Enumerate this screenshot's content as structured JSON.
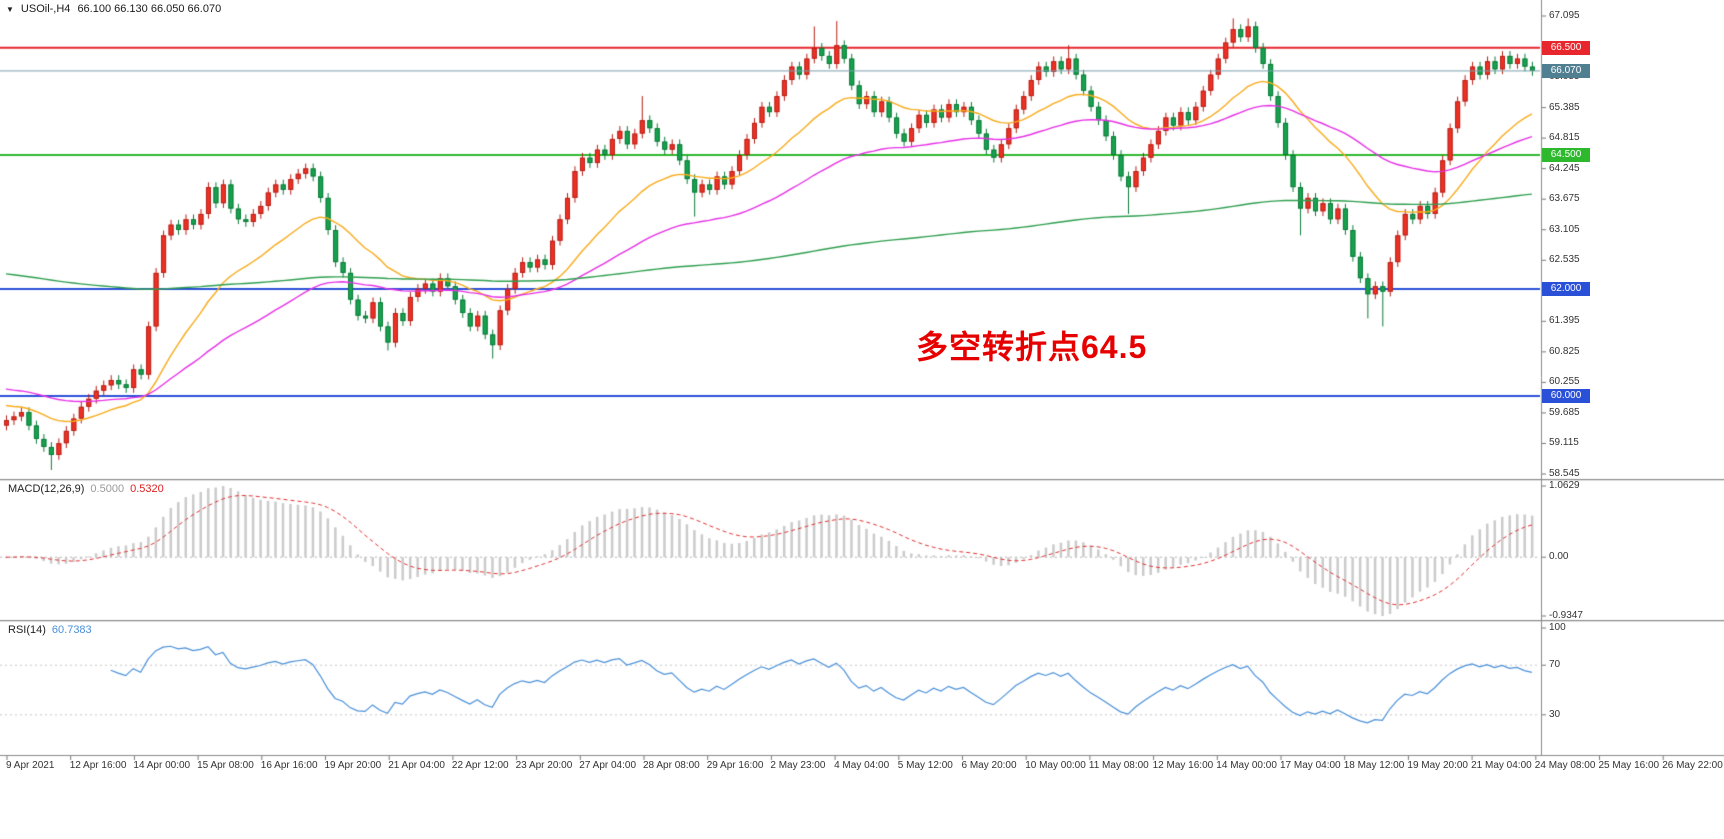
{
  "chart_data": [
    {
      "type": "candlestick",
      "title": "USOil-,H4",
      "ohlc_text": "66.100 66.130 66.050 66.070",
      "collapse_icon": "▼",
      "annotation": {
        "text": "多空转折点64.5",
        "color": "#e60000"
      },
      "y_ticks": [
        "67.095",
        "66.525",
        "65.955",
        "65.385",
        "64.815",
        "64.245",
        "63.675",
        "63.105",
        "62.535",
        "61.965",
        "61.395",
        "60.825",
        "60.255",
        "59.685",
        "59.115",
        "58.545"
      ],
      "scale": {
        "top_value": 67.095,
        "bottom_value": 58.545
      },
      "first_open": 59.45,
      "default_wick": 0.09,
      "closes": [
        59.55,
        59.62,
        59.7,
        59.45,
        59.2,
        59.05,
        58.9,
        59.12,
        59.35,
        59.58,
        59.8,
        59.95,
        60.1,
        60.2,
        60.3,
        60.22,
        60.15,
        60.5,
        60.4,
        61.3,
        62.3,
        63.0,
        63.2,
        63.1,
        63.3,
        63.2,
        63.4,
        63.9,
        63.6,
        63.95,
        63.5,
        63.3,
        63.25,
        63.4,
        63.55,
        63.8,
        63.95,
        63.85,
        64.05,
        64.15,
        64.25,
        64.1,
        63.7,
        63.1,
        62.5,
        62.3,
        61.8,
        61.5,
        61.45,
        61.75,
        61.3,
        61.0,
        61.55,
        61.4,
        61.85,
        62.0,
        62.1,
        61.95,
        62.2,
        62.05,
        61.8,
        61.55,
        61.3,
        61.5,
        61.15,
        60.95,
        61.6,
        62.0,
        62.3,
        62.5,
        62.4,
        62.55,
        62.45,
        62.9,
        63.3,
        63.7,
        64.2,
        64.45,
        64.35,
        64.6,
        64.5,
        64.8,
        64.95,
        64.7,
        64.9,
        65.15,
        65.0,
        64.75,
        64.6,
        64.7,
        64.4,
        64.05,
        63.8,
        63.95,
        63.85,
        64.1,
        63.95,
        64.2,
        64.5,
        64.8,
        65.1,
        65.4,
        65.3,
        65.6,
        65.9,
        66.15,
        66.0,
        66.3,
        66.5,
        66.35,
        66.2,
        66.55,
        66.3,
        65.8,
        65.45,
        65.6,
        65.3,
        65.5,
        65.2,
        64.9,
        64.75,
        65.0,
        65.25,
        65.1,
        65.35,
        65.2,
        65.45,
        65.3,
        65.4,
        65.15,
        64.9,
        64.6,
        64.45,
        64.7,
        65.0,
        65.35,
        65.6,
        65.9,
        66.15,
        66.05,
        66.25,
        66.1,
        66.3,
        66.0,
        65.7,
        65.4,
        65.15,
        64.85,
        64.5,
        64.1,
        63.9,
        64.2,
        64.45,
        64.7,
        64.95,
        65.2,
        65.05,
        65.3,
        65.15,
        65.4,
        65.7,
        66.0,
        66.3,
        66.6,
        66.85,
        66.7,
        66.9,
        66.5,
        66.2,
        65.6,
        65.1,
        64.5,
        63.9,
        63.5,
        63.7,
        63.45,
        63.6,
        63.3,
        63.5,
        63.1,
        62.6,
        62.2,
        61.9,
        62.05,
        61.95,
        62.5,
        63.0,
        63.4,
        63.3,
        63.55,
        63.4,
        63.8,
        64.4,
        65.0,
        65.5,
        65.9,
        66.15,
        66.0,
        66.25,
        66.1,
        66.35,
        66.2,
        66.3,
        66.15,
        66.07
      ],
      "wick_overrides": {
        "6": [
          null,
          58.62
        ],
        "51": [
          null,
          60.85
        ],
        "65": [
          null,
          60.7
        ],
        "85": [
          65.6,
          null
        ],
        "92": [
          null,
          63.35
        ],
        "108": [
          66.9,
          null
        ],
        "111": [
          67.0,
          null
        ],
        "142": [
          66.55,
          null
        ],
        "150": [
          null,
          63.4
        ],
        "164": [
          67.05,
          null
        ],
        "166": [
          67.05,
          null
        ],
        "173": [
          null,
          63.0
        ],
        "182": [
          null,
          61.45
        ],
        "184": [
          null,
          61.3
        ]
      },
      "up_color": "#ee3124",
      "up_border": "#b5221a",
      "down_color": "#17a24f",
      "down_border": "#0e7a3a",
      "moving_averages": [
        {
          "period": 21,
          "seed": 59.85,
          "color": "#f8ab1c"
        },
        {
          "period": 55,
          "seed": 60.15,
          "color": "#e631e6"
        },
        {
          "period": 300,
          "seed": 62.3,
          "color": "#2f9e4f"
        }
      ],
      "horizontal_lines": [
        {
          "value": 66.5,
          "label": "66.500",
          "color": "#e8262d"
        },
        {
          "value": 64.5,
          "label": "64.500",
          "color": "#2db82d"
        },
        {
          "value": 62.0,
          "label": "62.000",
          "color": "#2b50d8"
        },
        {
          "value": 60.0,
          "label": "60.000",
          "color": "#2b50d8"
        }
      ],
      "current_price": {
        "value": 66.07,
        "label": "66.070",
        "badge_color": "#517f92",
        "line_color": "#7aa0ae"
      }
    },
    {
      "type": "macd",
      "label": "MACD(12,26,9)",
      "value_main": "0.5000",
      "value_signal": "0.5320",
      "fast": 12,
      "slow": 26,
      "signal": 9,
      "y_ticks": {
        "max": "1.0629",
        "zero": "0.00",
        "min": "-0.9347"
      },
      "histogram_color": "#cbcbcb",
      "signal_color": "#e03131"
    },
    {
      "type": "rsi",
      "label": "RSI(14)",
      "value": "60.7383",
      "period": 14,
      "y_ticks": [
        "100",
        "70",
        "30"
      ],
      "levels": [
        70,
        30
      ],
      "line_color": "#4a90d9"
    }
  ],
  "time_axis": {
    "labels": [
      "9 Apr 2021",
      "12 Apr 16:00",
      "14 Apr 00:00",
      "15 Apr 08:00",
      "16 Apr 16:00",
      "19 Apr 20:00",
      "21 Apr 04:00",
      "22 Apr 12:00",
      "23 Apr 20:00",
      "27 Apr 04:00",
      "28 Apr 08:00",
      "29 Apr 16:00",
      "2 May 23:00",
      "4 May 04:00",
      "5 May 12:00",
      "6 May 20:00",
      "10 May 00:00",
      "11 May 08:00",
      "12 May 16:00",
      "14 May 00:00",
      "17 May 04:00",
      "18 May 12:00",
      "19 May 20:00",
      "21 May 04:00",
      "24 May 08:00",
      "25 May 16:00",
      "26 May 22:00"
    ]
  }
}
